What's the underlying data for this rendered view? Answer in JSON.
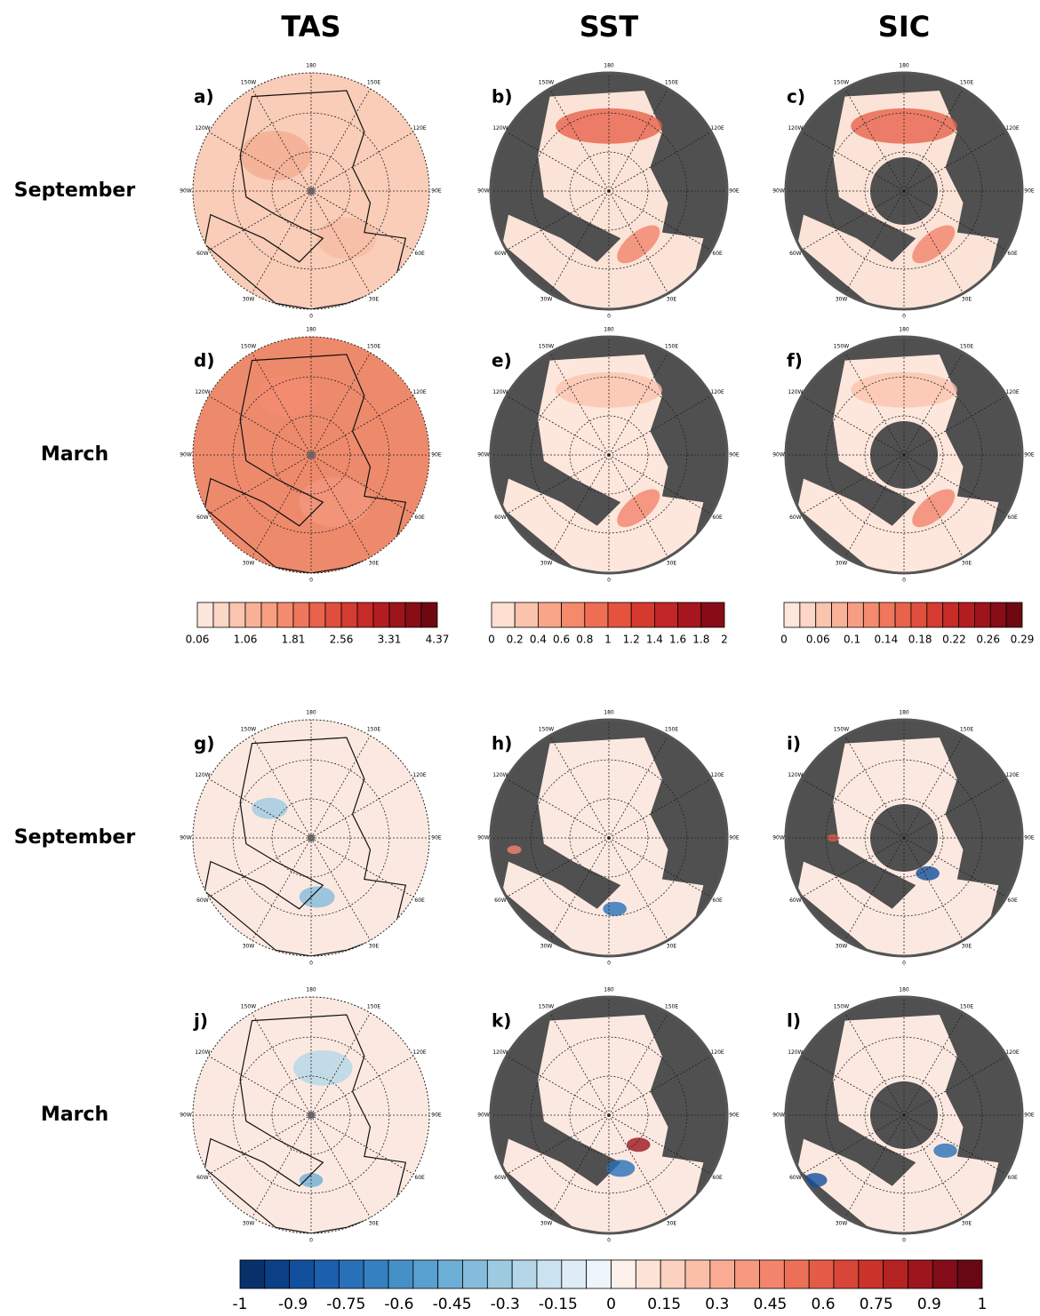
{
  "columns": [
    "TAS",
    "SST",
    "SIC"
  ],
  "rows": [
    "September",
    "March",
    "September",
    "March"
  ],
  "panels": [
    "a)",
    "b)",
    "c)",
    "d)",
    "e)",
    "f)",
    "g)",
    "h)",
    "i)",
    "j)",
    "k)",
    "l)"
  ],
  "lon_labels": [
    "180",
    "150E",
    "120E",
    "90E",
    "60E",
    "30E",
    "0",
    "30W",
    "60W",
    "90W",
    "120W",
    "150W"
  ],
  "colorbars": [
    {
      "ticks": [
        0.06,
        1.06,
        1.81,
        2.56,
        3.31,
        4.37
      ],
      "colors": [
        "#fde6dc",
        "#fcd6c6",
        "#fbc4ae",
        "#f9b197",
        "#f79e82",
        "#f48a6e",
        "#f0765c",
        "#e9624b",
        "#e04f3d",
        "#d43c31",
        "#c52b27",
        "#b31d21",
        "#9e141c",
        "#880d17",
        "#6e0912"
      ]
    },
    {
      "ticks": [
        0,
        0.2,
        0.4,
        0.6,
        0.8,
        1,
        1.2,
        1.4,
        1.6,
        1.8,
        2
      ],
      "colors": [
        "#fde0d2",
        "#fbc3ab",
        "#f9a688",
        "#f5896b",
        "#ef6d52",
        "#e5533e",
        "#d63a2f",
        "#c22626",
        "#a7161f",
        "#870c18"
      ]
    },
    {
      "ticks": [
        0,
        0.06,
        0.1,
        0.14,
        0.18,
        0.22,
        0.26,
        0.29
      ],
      "colors": [
        "#fde6dc",
        "#fcd6c6",
        "#fbc4ae",
        "#f9b197",
        "#f79e82",
        "#f48a6e",
        "#f0765c",
        "#e9624b",
        "#e04f3d",
        "#d43c31",
        "#c52b27",
        "#b31d21",
        "#9e141c",
        "#880d17",
        "#6e0912"
      ]
    },
    {
      "ticks": [
        -1,
        -0.9,
        -0.75,
        -0.6,
        -0.45,
        -0.3,
        -0.15,
        0,
        0.15,
        0.3,
        0.45,
        0.6,
        0.75,
        0.9,
        1
      ],
      "colors": [
        "#08306b",
        "#0b3f86",
        "#124f9c",
        "#1b5fae",
        "#2870b8",
        "#3580c0",
        "#4590c7",
        "#58a0cf",
        "#6daed6",
        "#85bcdc",
        "#9ecae1",
        "#b5d6e9",
        "#cbe2f0",
        "#deecf6",
        "#edf4fa",
        "#fdf0ea",
        "#fde2d6",
        "#fcd1bf",
        "#fbbfa8",
        "#f9ac92",
        "#f6997e",
        "#f2856b",
        "#ec7058",
        "#e45b47",
        "#d84637",
        "#c9332a",
        "#b52222",
        "#9d151d",
        "#820d19",
        "#670814"
      ]
    }
  ]
}
